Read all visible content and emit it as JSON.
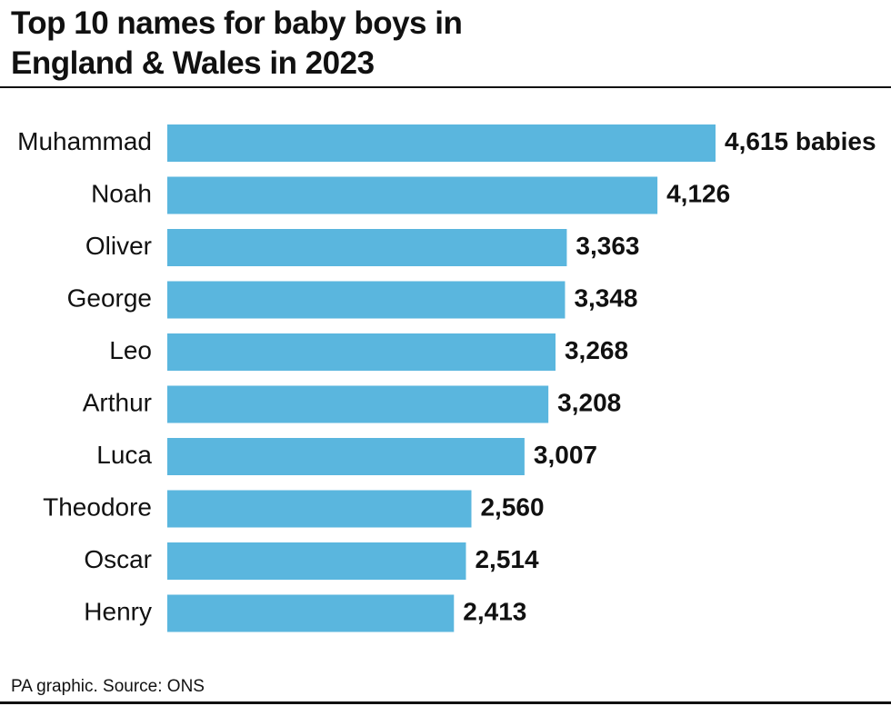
{
  "chart_data": {
    "type": "bar",
    "orientation": "horizontal",
    "title": "Top 10 names for baby boys in England & Wales in 2023",
    "categories": [
      "Muhammad",
      "Noah",
      "Oliver",
      "George",
      "Leo",
      "Arthur",
      "Luca",
      "Theodore",
      "Oscar",
      "Henry"
    ],
    "values": [
      4615,
      4126,
      3363,
      3348,
      3268,
      3208,
      3007,
      2560,
      2514,
      2413
    ],
    "value_labels": [
      "4,615 babies",
      "4,126",
      "3,363",
      "3,348",
      "3,268",
      "3,208",
      "3,007",
      "2,560",
      "2,514",
      "2,413"
    ],
    "color": "#5ab6de",
    "source": "PA graphic. Source: ONS"
  }
}
